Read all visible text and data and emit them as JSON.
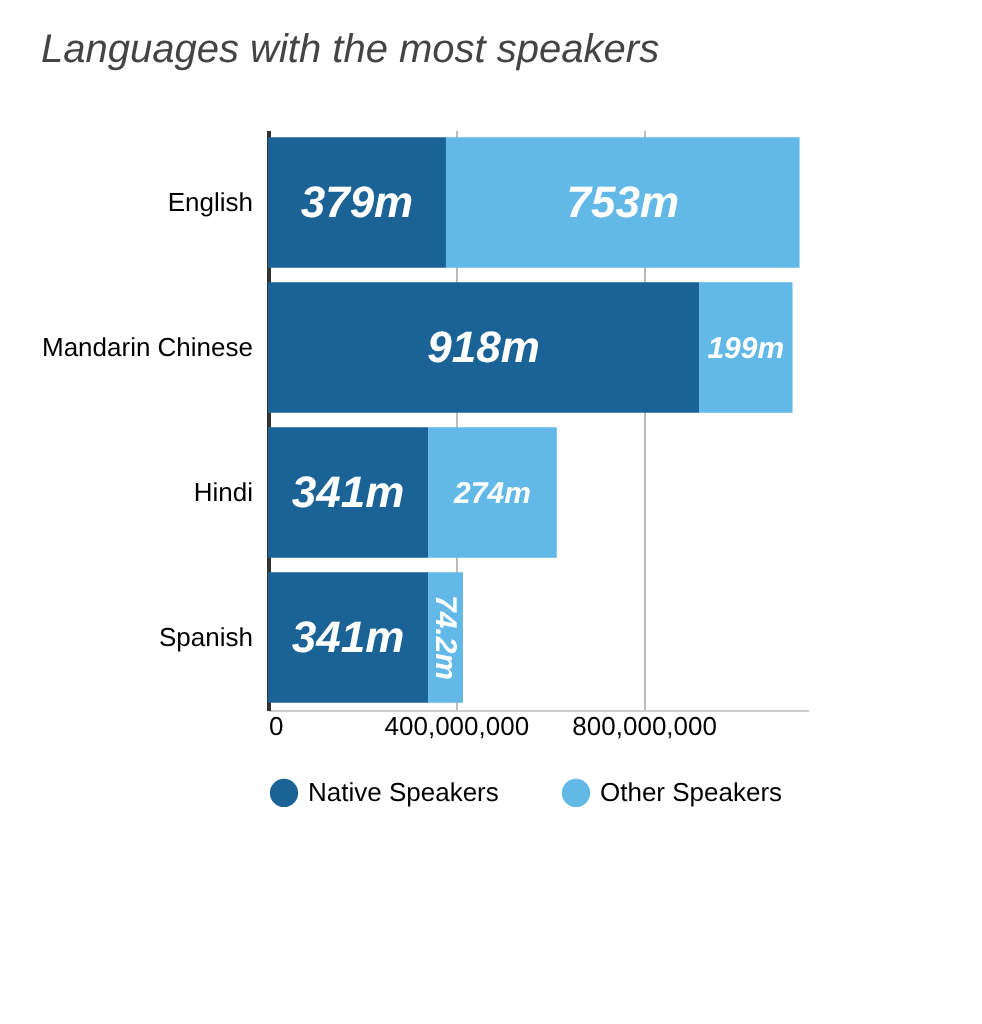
{
  "chart_data": {
    "type": "bar",
    "title": "Languages with the most speakers",
    "orientation": "horizontal",
    "stacked": true,
    "categories": [
      "English",
      "Mandarin Chinese",
      "Hindi",
      "Spanish"
    ],
    "series": [
      {
        "name": "Native Speakers",
        "color": "#1b6396",
        "values": [
          379000000,
          918000000,
          341000000,
          341000000
        ],
        "value_labels": [
          "379m",
          "918m",
          "341m",
          "341m"
        ]
      },
      {
        "name": "Other Speakers",
        "color": "#62b8e6",
        "values": [
          753000000,
          199000000,
          274000000,
          74200000
        ],
        "value_labels": [
          "753m",
          "199m",
          "274m",
          "74.2m"
        ]
      }
    ],
    "xlim": [
      0,
      1150000000
    ],
    "xticks": [
      0,
      {
        "value": 400000000,
        "label": "400,000,000"
      },
      {
        "value": 800000000,
        "label": "800,000,000"
      }
    ],
    "grid": "x",
    "legend": "bottom"
  }
}
